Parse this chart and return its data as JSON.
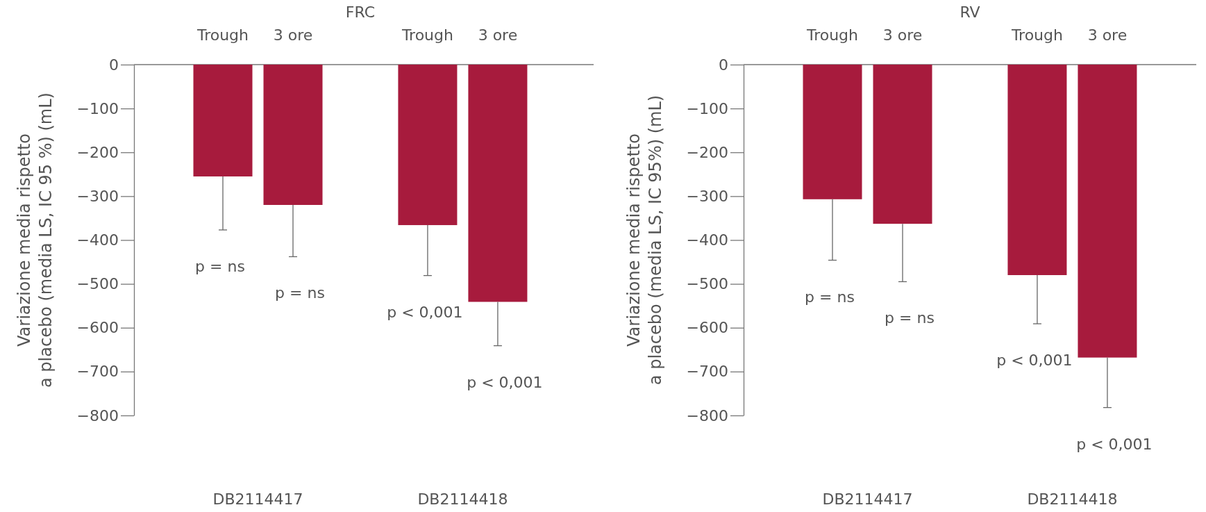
{
  "chart_data": [
    {
      "type": "bar",
      "title": "FRC",
      "ylabel": "Variazione media rispetto\na placebo (media LS, IC 95 %) (mL)",
      "categories": [
        "Trough",
        "3 ore",
        "Trough",
        "3 ore"
      ],
      "values": [
        -255,
        -320,
        -366,
        -541
      ],
      "color": "#a71b3d",
      "errors": [
        [
          -377,
          -255
        ],
        [
          -438,
          -320
        ],
        [
          -481,
          -366
        ],
        [
          -641,
          -541
        ]
      ],
      "ylim": [
        -800,
        0
      ],
      "yticks": [
        0,
        {
          "value": -100,
          "label": "−100"
        },
        {
          "value": -200,
          "label": "−200"
        },
        {
          "value": -300,
          "label": "−300"
        },
        {
          "value": -400,
          "label": "−400"
        },
        {
          "value": -500,
          "label": "−500"
        },
        {
          "value": -600,
          "label": "−600"
        },
        {
          "value": -700,
          "label": "−700"
        },
        {
          "value": -800,
          "label": "−800"
        }
      ],
      "annotations": [
        "p = ns",
        "p = ns",
        "p < 0,001",
        "p < 0,001",
        "DB2114417",
        "DB2114418"
      ]
    },
    {
      "type": "bar",
      "title": "RV",
      "ylabel": "Variazione media rispetto\na placebo (media LS, IC 95%) (mL)",
      "categories": [
        "Trough",
        "3 ore",
        "Trough",
        "3 ore"
      ],
      "values": [
        -307,
        -363,
        -480,
        -668
      ],
      "color": "#a71b3d",
      "errors": [
        [
          -446,
          -307
        ],
        [
          -495,
          -363
        ],
        [
          -591,
          -480
        ],
        [
          -782,
          -668
        ]
      ],
      "ylim": [
        -800,
        0
      ],
      "yticks": [
        0,
        {
          "value": -100,
          "label": "−100"
        },
        {
          "value": -200,
          "label": "−200"
        },
        {
          "value": -300,
          "label": "−300"
        },
        {
          "value": -400,
          "label": "−400"
        },
        {
          "value": -500,
          "label": "−500"
        },
        {
          "value": -600,
          "label": "−600"
        },
        {
          "value": -700,
          "label": "−700"
        },
        {
          "value": -800,
          "label": "−800"
        }
      ],
      "annotations": [
        "p = ns",
        "p = ns",
        "p < 0,001",
        "p < 0,001",
        "DB2114417",
        "DB2114418"
      ]
    }
  ]
}
